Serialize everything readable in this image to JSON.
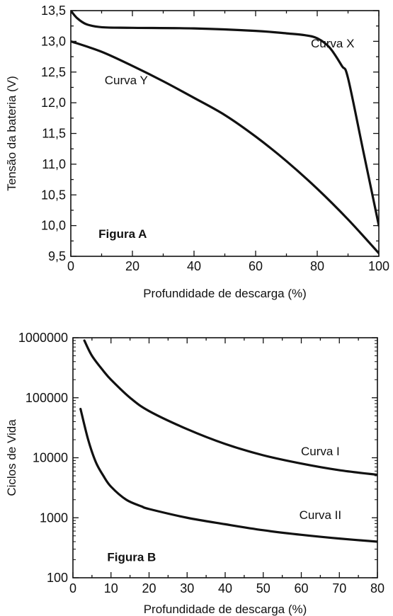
{
  "chart_data": [
    {
      "type": "line",
      "figure_label": "Figura A",
      "xlabel": "Profundidade de descarga (%)",
      "ylabel": "Tensão da bateria (V)",
      "xlim": [
        0,
        100
      ],
      "ylim": [
        9.5,
        13.5
      ],
      "x_ticks": [
        0,
        20,
        40,
        60,
        80,
        100
      ],
      "y_ticks": [
        9.5,
        10.0,
        10.5,
        11.0,
        11.5,
        12.0,
        12.5,
        13.0,
        13.5
      ],
      "y_tick_labels": [
        "9,5",
        "10,0",
        "10,5",
        "11,0",
        "11,5",
        "12,0",
        "12,5",
        "13,0",
        "13,5"
      ],
      "x_tick_labels": [
        "0",
        "20",
        "40",
        "60",
        "80",
        "100"
      ],
      "scale_y": "linear",
      "grid": false,
      "series": [
        {
          "name": "Curva X",
          "x": [
            0,
            2,
            5,
            10,
            20,
            40,
            60,
            70,
            76,
            80,
            84,
            88,
            90,
            95,
            100
          ],
          "values": [
            13.5,
            13.38,
            13.28,
            13.23,
            13.22,
            13.21,
            13.17,
            13.13,
            13.1,
            13.05,
            12.9,
            12.6,
            12.4,
            11.2,
            10.0
          ]
        },
        {
          "name": "Curva Y",
          "x": [
            0,
            10,
            20,
            30,
            40,
            50,
            60,
            70,
            80,
            90,
            100
          ],
          "values": [
            13.0,
            12.83,
            12.6,
            12.35,
            12.08,
            11.8,
            11.45,
            11.05,
            10.6,
            10.1,
            9.55
          ]
        }
      ],
      "annotations": [
        {
          "text": "Curva X",
          "at_x": 85,
          "at_y": 12.9
        },
        {
          "text": "Curva Y",
          "at_x": 18,
          "at_y": 12.3
        },
        {
          "text": "Figura A",
          "at_x": 9,
          "at_y": 9.8
        }
      ]
    },
    {
      "type": "line",
      "figure_label": "Figura B",
      "xlabel": "Profundidade de descarga (%)",
      "ylabel": "Ciclos de Vida",
      "xlim": [
        0,
        80
      ],
      "ylim": [
        100,
        1000000
      ],
      "scale_y": "log",
      "x_ticks": [
        0,
        10,
        20,
        30,
        40,
        50,
        60,
        70,
        80
      ],
      "x_tick_labels": [
        "0",
        "10",
        "20",
        "30",
        "40",
        "50",
        "60",
        "70",
        "80"
      ],
      "y_ticks": [
        100,
        1000,
        10000,
        100000,
        1000000
      ],
      "y_tick_labels": [
        "100",
        "1000",
        "10000",
        "100000",
        "1000000"
      ],
      "grid": false,
      "series": [
        {
          "name": "Curva I",
          "x": [
            3,
            5,
            8,
            10,
            15,
            20,
            30,
            40,
            50,
            60,
            70,
            80
          ],
          "values": [
            900000,
            500000,
            280000,
            200000,
            100000,
            60000,
            30000,
            17000,
            11000,
            8000,
            6200,
            5200
          ]
        },
        {
          "name": "Curva II",
          "x": [
            2,
            4,
            6,
            8,
            10,
            14,
            18,
            20,
            30,
            40,
            50,
            60,
            70,
            80
          ],
          "values": [
            65000,
            20000,
            8500,
            5000,
            3300,
            2000,
            1550,
            1400,
            1000,
            780,
            620,
            520,
            450,
            400
          ]
        }
      ],
      "annotations": [
        {
          "text": "Curva I",
          "at_x": 65,
          "at_y": 11000
        },
        {
          "text": "Curva II",
          "at_x": 65,
          "at_y": 950
        },
        {
          "text": "Figura B",
          "at_x": 9,
          "at_y": 190
        }
      ]
    }
  ]
}
